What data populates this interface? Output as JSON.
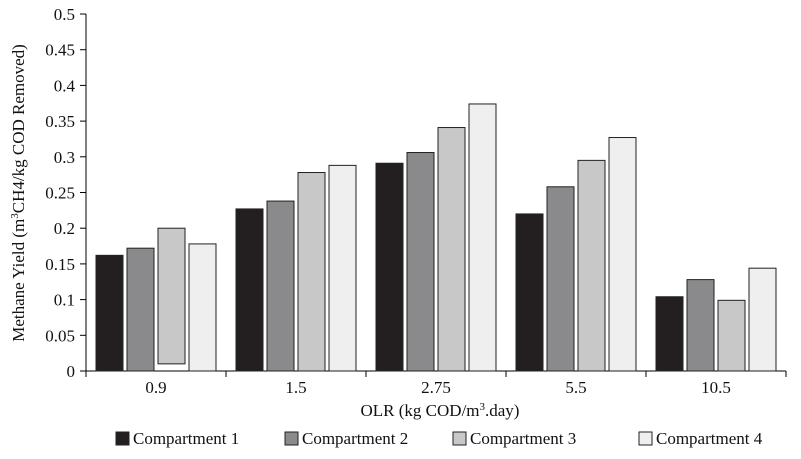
{
  "chart_data": {
    "type": "bar",
    "categories": [
      "0.9",
      "1.5",
      "2.75",
      "5.5",
      "10.5"
    ],
    "series": [
      {
        "name": "Compartment 1",
        "color": "#231f20",
        "values": [
          0.162,
          0.227,
          0.291,
          0.22,
          0.104
        ]
      },
      {
        "name": "Compartment 2",
        "color": "#8a8a8c",
        "values": [
          0.172,
          0.238,
          0.306,
          0.258,
          0.128
        ]
      },
      {
        "name": "Compartment 3",
        "color": "#c8c8c8",
        "values": [
          0.2,
          0.278,
          0.341,
          0.295,
          0.099
        ],
        "bases": [
          0.01,
          0,
          0,
          0,
          0
        ]
      },
      {
        "name": "Compartment 4",
        "color": "#efefef",
        "values": [
          0.178,
          0.288,
          0.374,
          0.327,
          0.144
        ]
      }
    ],
    "xlabel_parts": [
      "OLR (kg COD/m",
      "3",
      ".day)"
    ],
    "ylabel_parts": [
      "Methane Yield (m",
      "3",
      "CH4/kg COD Removed)"
    ],
    "ylim": [
      0,
      0.5
    ],
    "y_ticks": [
      "0",
      "0.05",
      "0.1",
      "0.15",
      "0.2",
      "0.25",
      "0.3",
      "0.35",
      "0.4",
      "0.45",
      "0.5"
    ],
    "grid": false,
    "legend_position": "bottom"
  }
}
